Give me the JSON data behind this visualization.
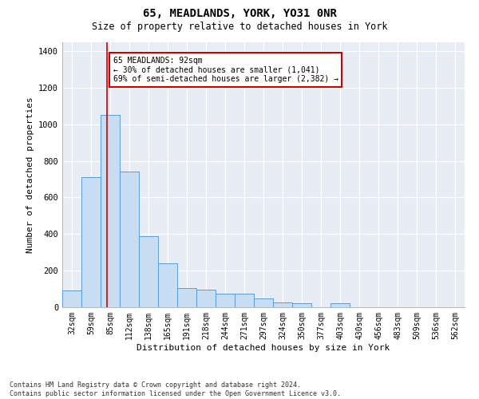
{
  "title1": "65, MEADLANDS, YORK, YO31 0NR",
  "title2": "Size of property relative to detached houses in York",
  "xlabel": "Distribution of detached houses by size in York",
  "ylabel": "Number of detached properties",
  "footnote": "Contains HM Land Registry data © Crown copyright and database right 2024.\nContains public sector information licensed under the Open Government Licence v3.0.",
  "bar_labels": [
    "32sqm",
    "59sqm",
    "85sqm",
    "112sqm",
    "138sqm",
    "165sqm",
    "191sqm",
    "218sqm",
    "244sqm",
    "271sqm",
    "297sqm",
    "324sqm",
    "350sqm",
    "377sqm",
    "403sqm",
    "430sqm",
    "456sqm",
    "483sqm",
    "509sqm",
    "536sqm",
    "562sqm"
  ],
  "bar_values": [
    90,
    710,
    1050,
    740,
    390,
    240,
    105,
    95,
    75,
    75,
    50,
    25,
    20,
    0,
    20,
    0,
    0,
    0,
    0,
    0,
    0
  ],
  "bar_color": "#c9ddf2",
  "bar_edge_color": "#5b9bd5",
  "background_color": "#e8edf5",
  "property_line_x": 1.85,
  "annotation_text": "65 MEADLANDS: 92sqm\n← 30% of detached houses are smaller (1,041)\n69% of semi-detached houses are larger (2,382) →",
  "annotation_box_color": "#ffffff",
  "annotation_box_edge": "#cc0000",
  "red_line_color": "#cc0000",
  "ylim": [
    0,
    1450
  ],
  "yticks": [
    0,
    200,
    400,
    600,
    800,
    1000,
    1200,
    1400
  ],
  "grid_color": "#ffffff",
  "title1_fontsize": 10,
  "title2_fontsize": 8.5,
  "tick_fontsize": 7,
  "axis_label_fontsize": 8,
  "footnote_fontsize": 6,
  "annot_fontsize": 7
}
